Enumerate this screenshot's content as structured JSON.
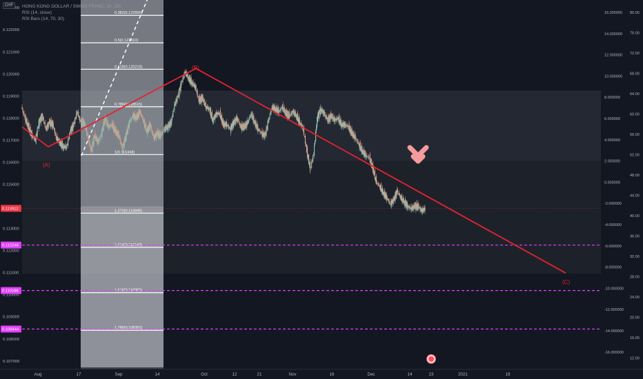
{
  "symbol": {
    "currency_badge": "CHF",
    "title": "HONG KONG DOLLAR / SWISS FRANC, 1h, IDC",
    "indicator_1": "RSI (14, close)",
    "indicator_2": "RSI Bars (14, 70, 30)"
  },
  "colors": {
    "background": "#131722",
    "wave_line": "#e6222e",
    "wave_label": "#e6222e",
    "fib_line": "#ffffff",
    "magenta_level": "#e040fb",
    "heart": "#f49b9b",
    "candle_up": "#8fbcad",
    "candle_down": "#d3a08a"
  },
  "icons": {
    "heart_marker": "heart-icon",
    "event_marker": "earnings-icon"
  },
  "chart_data": {
    "type": "candlestick",
    "title": "HONG KONG DOLLAR / SWISS FRANC, 1h, IDC",
    "left_axis": {
      "ticks": [
        0.123,
        0.122,
        0.121,
        0.12,
        0.119,
        0.118,
        0.117,
        0.116,
        0.115,
        0.114,
        0.113,
        0.112,
        0.111,
        0.11,
        0.109,
        0.108,
        0.107
      ],
      "tick_labels": [
        "0.123000",
        "0.122000",
        "0.121000",
        "0.120000",
        "0.119000",
        "0.118000",
        "0.117000",
        "0.116000",
        "0.115000",
        "0.114000",
        "0.113000",
        "0.112000",
        "0.111000",
        "0.110000",
        "0.109000",
        "0.108000",
        "0.107000"
      ],
      "ylim": [
        0.10665,
        0.12335
      ]
    },
    "right_axis_inner": {
      "ticks": [
        16,
        14,
        12,
        10,
        8,
        6,
        4,
        2,
        0,
        -2,
        -4,
        -6,
        -8,
        -10,
        -12,
        -14,
        -16
      ],
      "tick_labels": [
        "16.000000",
        "14.000000",
        "12.000000",
        "10.000000",
        "8.000000",
        "6.000000",
        "4.000000",
        "2.000000",
        "0.000000",
        "-2.000000",
        "-4.000000",
        "-6.000000",
        "-8.000000",
        "-10.000000",
        "-12.000000",
        "-14.000000",
        "-16.000000"
      ]
    },
    "right_axis_outer": {
      "ticks": [
        80,
        76,
        72,
        68,
        64,
        60,
        56,
        52,
        48,
        44,
        40,
        36,
        32,
        28,
        24,
        20,
        16,
        12
      ],
      "tick_labels": [
        "80.00",
        "76.00",
        "72.00",
        "68.00",
        "64.00",
        "60.00",
        "56.00",
        "52.00",
        "48.00",
        "44.00",
        "40.00",
        "36.00",
        "32.00",
        "28.00",
        "24.00",
        "20.00",
        "16.00",
        "12.00"
      ]
    },
    "x_axis": {
      "tick_labels": [
        "Aug",
        "17",
        "Sep",
        "14",
        "Oct",
        "12",
        "21",
        "Nov",
        "16",
        "Dec",
        "14",
        "23",
        "2021",
        "18"
      ]
    },
    "price_badges": [
      {
        "label": "0.113912",
        "value": 0.113912,
        "color": "#f23645"
      },
      {
        "label": "0.112248",
        "value": 0.112248,
        "color": "#e040fb"
      },
      {
        "label": "0.110188",
        "value": 0.110188,
        "color": "#e040fb"
      },
      {
        "label": "0.108444",
        "value": 0.108444,
        "color": "#e040fb"
      }
    ],
    "magenta_levels": [
      0.112248,
      0.110188,
      0.108444
    ],
    "fib_levels": [
      {
        "label": "0.382(0.122656)",
        "value": 0.122656
      },
      {
        "label": "0.5(0.121410)",
        "value": 0.12141
      },
      {
        "label": "0.618(0.120215)",
        "value": 0.120215
      },
      {
        "label": "0.786(0.118515)",
        "value": 0.118515
      },
      {
        "label": "1(0.116348)",
        "value": 0.116348
      },
      {
        "label": "1.272(0.113695)",
        "value": 0.113695
      },
      {
        "label": "1.414(0.112148)",
        "value": 0.112148
      },
      {
        "label": "1.618(0.110092)",
        "value": 0.110092
      },
      {
        "label": "1.786(0.108391)",
        "value": 0.108391
      }
    ],
    "wave_labels": [
      "(A)",
      "(B)",
      "(C)"
    ],
    "wave_points": [
      {
        "label": "",
        "x_index": 0,
        "value": 0.1176
      },
      {
        "label": "(A)",
        "x_index": 38,
        "value": 0.1167
      },
      {
        "label": "(B)",
        "x_index": 279,
        "value": 0.12025
      },
      {
        "label": "(C)",
        "x_index": 820,
        "value": 0.11098
      }
    ],
    "series_close": [
      0.1185,
      0.118,
      0.1176,
      0.1172,
      0.117,
      0.1178,
      0.1181,
      0.1175,
      0.1178,
      0.1177,
      0.1171,
      0.1169,
      0.1167,
      0.1167,
      0.1174,
      0.1177,
      0.1183,
      0.1178,
      0.1178,
      0.1172,
      0.1165,
      0.1172,
      0.1169,
      0.1173,
      0.118,
      0.1176,
      0.1177,
      0.1174,
      0.1172,
      0.1166,
      0.1172,
      0.1178,
      0.1181,
      0.118,
      0.1183,
      0.1179,
      0.1174,
      0.1177,
      0.1171,
      0.1173,
      0.1172,
      0.1175,
      0.1176,
      0.1178,
      0.1186,
      0.119,
      0.1196,
      0.1201,
      0.1198,
      0.1196,
      0.1194,
      0.1188,
      0.1189,
      0.1185,
      0.1184,
      0.1179,
      0.1182,
      0.1182,
      0.1177,
      0.1177,
      0.1175,
      0.1178,
      0.118,
      0.1176,
      0.1176,
      0.1178,
      0.1182,
      0.1178,
      0.1175,
      0.1173,
      0.1172,
      0.1179,
      0.1185,
      0.1184,
      0.1183,
      0.1185,
      0.1182,
      0.1181,
      0.1183,
      0.1181,
      0.1178,
      0.1175,
      0.1165,
      0.1157,
      0.1164,
      0.118,
      0.1184,
      0.1182,
      0.1179,
      0.1181,
      0.1179,
      0.118,
      0.1177,
      0.1177,
      0.1176,
      0.1173,
      0.1171,
      0.1168,
      0.1165,
      0.1163,
      0.1162,
      0.1157,
      0.1151,
      0.1149,
      0.1146,
      0.1144,
      0.1141,
      0.1143,
      0.1147,
      0.1144,
      0.1142,
      0.114,
      0.1139,
      0.114,
      0.114,
      0.1138,
      0.1139
    ]
  }
}
